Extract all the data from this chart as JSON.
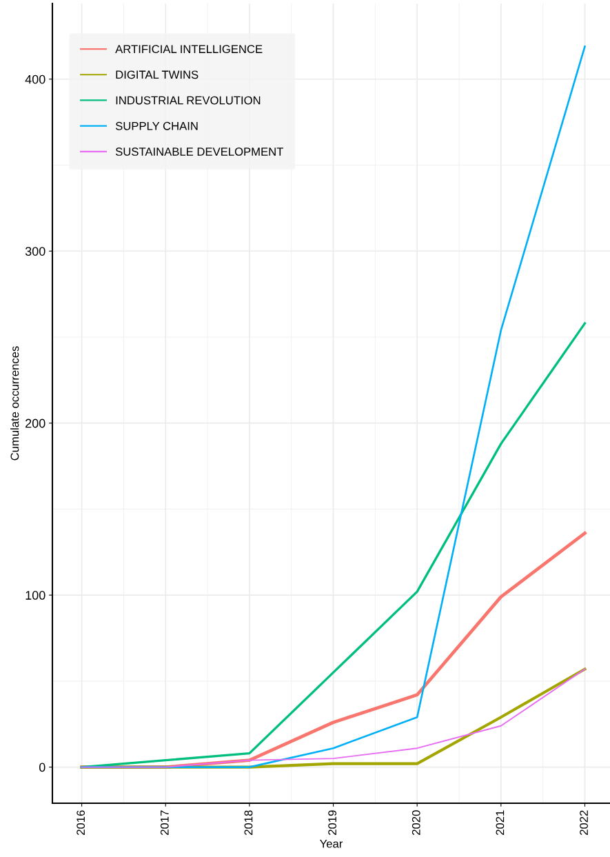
{
  "chart_data": {
    "type": "line",
    "xlabel": "Year",
    "ylabel": "Cumulate occurrences",
    "x": [
      2016,
      2017,
      2018,
      2019,
      2020,
      2021,
      2022
    ],
    "series": [
      {
        "name": "ARTIFICIAL INTELLIGENCE",
        "color": "#f8766d",
        "values": [
          0,
          0,
          4,
          26,
          42,
          99,
          136
        ]
      },
      {
        "name": "DIGITAL TWINS",
        "color": "#a3a500",
        "values": [
          0,
          0,
          0,
          2,
          2,
          29,
          57
        ]
      },
      {
        "name": "INDUSTRIAL REVOLUTION",
        "color": "#00bf7d",
        "values": [
          0,
          4,
          8,
          55,
          102,
          188,
          258
        ]
      },
      {
        "name": "SUPPLY CHAIN",
        "color": "#00b0f6",
        "values": [
          0,
          0,
          0,
          11,
          29,
          254,
          419
        ]
      },
      {
        "name": "SUSTAINABLE DEVELOPMENT",
        "color": "#e76bf3",
        "values": [
          0,
          0,
          4,
          5,
          11,
          24,
          57
        ]
      }
    ],
    "xlim": [
      2015.65,
      2022.3
    ],
    "xticks": [
      2016,
      2017,
      2018,
      2019,
      2020,
      2021,
      2022
    ],
    "ylim": [
      -21,
      444
    ],
    "yticks": [
      0,
      100,
      200,
      300,
      400
    ],
    "grid": true,
    "legend": "top left",
    "marker": "none",
    "line_style": "solid"
  }
}
